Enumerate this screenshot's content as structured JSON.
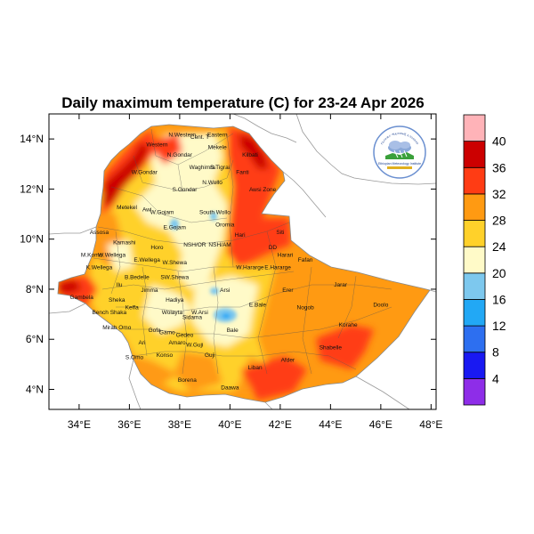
{
  "title": "Daily maximum temperature (C) for 23-24 Apr 2026",
  "colors": {
    "background": "#ffffff",
    "land_outside": "#ffffff",
    "border": "#999999",
    "frame": "#000000"
  },
  "axes": {
    "x_ticks": [
      "34°E",
      "36°E",
      "38°E",
      "40°E",
      "42°E",
      "44°E",
      "46°E",
      "48°E"
    ],
    "y_ticks": [
      "14°N",
      "12°N",
      "10°N",
      "8°N",
      "6°N",
      "4°N"
    ],
    "xlim": [
      32.8,
      48.2
    ],
    "ylim": [
      3.2,
      15.0
    ]
  },
  "colorbar": {
    "bins": [
      {
        "color": "#8e2de8"
      },
      {
        "color": "#1919f2"
      },
      {
        "color": "#2d6ff0"
      },
      {
        "color": "#22a8f5"
      },
      {
        "color": "#7dc8ee"
      },
      {
        "color": "#fffac8"
      },
      {
        "color": "#ffd12a"
      },
      {
        "color": "#ff9a12"
      },
      {
        "color": "#ff3c14"
      },
      {
        "color": "#cc0000"
      },
      {
        "color": "#ffb3b8"
      }
    ],
    "labels": [
      "4",
      "8",
      "12",
      "16",
      "20",
      "24",
      "28",
      "32",
      "36",
      "40"
    ]
  },
  "logo": {
    "top_text": "የኢትዮጵያ ሚቲዎሮሎጂ ኢንስቲትዩት",
    "bottom_text": "Ethiopian Meteorology Institute"
  },
  "regions": [
    {
      "name": "N.Western",
      "lon": 38.1,
      "lat": 14.1
    },
    {
      "name": "Cent. T",
      "lon": 38.8,
      "lat": 14.0
    },
    {
      "name": "Eastern",
      "lon": 39.5,
      "lat": 14.1
    },
    {
      "name": "Western",
      "lon": 37.1,
      "lat": 13.7
    },
    {
      "name": "Mekele",
      "lon": 39.5,
      "lat": 13.6
    },
    {
      "name": "Kilbati",
      "lon": 40.8,
      "lat": 13.3
    },
    {
      "name": "N.Gondar",
      "lon": 38.0,
      "lat": 13.3
    },
    {
      "name": "S.Tigrai",
      "lon": 39.6,
      "lat": 12.8
    },
    {
      "name": "W.Gondar",
      "lon": 36.6,
      "lat": 12.6
    },
    {
      "name": "Waghimra",
      "lon": 38.9,
      "lat": 12.8
    },
    {
      "name": "Fanti",
      "lon": 40.5,
      "lat": 12.6
    },
    {
      "name": "N.Wollo",
      "lon": 39.3,
      "lat": 12.2
    },
    {
      "name": "Awsi Zone",
      "lon": 41.3,
      "lat": 11.9
    },
    {
      "name": "S.Gondar",
      "lon": 38.2,
      "lat": 11.9
    },
    {
      "name": "Metekel",
      "lon": 35.9,
      "lat": 11.2
    },
    {
      "name": "Awi",
      "lon": 36.7,
      "lat": 11.1
    },
    {
      "name": "W.Gojam",
      "lon": 37.3,
      "lat": 11.0
    },
    {
      "name": "South Wollo",
      "lon": 39.4,
      "lat": 11.0
    },
    {
      "name": "Oromia",
      "lon": 39.8,
      "lat": 10.5
    },
    {
      "name": "E.Gojam",
      "lon": 37.8,
      "lat": 10.4
    },
    {
      "name": "Hari",
      "lon": 40.4,
      "lat": 10.1
    },
    {
      "name": "Assosa",
      "lon": 34.8,
      "lat": 10.2
    },
    {
      "name": "Siti",
      "lon": 42.0,
      "lat": 10.2
    },
    {
      "name": "Kamashi",
      "lon": 35.8,
      "lat": 9.8
    },
    {
      "name": "Horo",
      "lon": 37.1,
      "lat": 9.6
    },
    {
      "name": "NSH/OR",
      "lon": 38.6,
      "lat": 9.7
    },
    {
      "name": "NSH/AM",
      "lon": 39.6,
      "lat": 9.7
    },
    {
      "name": "DD",
      "lon": 41.7,
      "lat": 9.6
    },
    {
      "name": "Harari",
      "lon": 42.2,
      "lat": 9.3
    },
    {
      "name": "M.Komo",
      "lon": 34.5,
      "lat": 9.3
    },
    {
      "name": "W.Wellega",
      "lon": 35.3,
      "lat": 9.3
    },
    {
      "name": "E.Wellega",
      "lon": 36.7,
      "lat": 9.1
    },
    {
      "name": "W.Shewa",
      "lon": 37.8,
      "lat": 9.0
    },
    {
      "name": "Fafan",
      "lon": 43.0,
      "lat": 9.1
    },
    {
      "name": "W.Hararge",
      "lon": 40.8,
      "lat": 8.8
    },
    {
      "name": "E.Hararge",
      "lon": 41.9,
      "lat": 8.8
    },
    {
      "name": "K.Wellega",
      "lon": 34.8,
      "lat": 8.8
    },
    {
      "name": "B.Bedelle",
      "lon": 36.3,
      "lat": 8.4
    },
    {
      "name": "SW.Shewa",
      "lon": 37.8,
      "lat": 8.4
    },
    {
      "name": "Jarar",
      "lon": 44.4,
      "lat": 8.1
    },
    {
      "name": "Ilu",
      "lon": 35.6,
      "lat": 8.1
    },
    {
      "name": "Jimma",
      "lon": 36.8,
      "lat": 7.9
    },
    {
      "name": "Arsi",
      "lon": 39.8,
      "lat": 7.9
    },
    {
      "name": "Erer",
      "lon": 42.3,
      "lat": 7.9
    },
    {
      "name": "Gambela",
      "lon": 34.1,
      "lat": 7.6
    },
    {
      "name": "Keffa",
      "lon": 36.1,
      "lat": 7.2
    },
    {
      "name": "Hadiya",
      "lon": 37.8,
      "lat": 7.5
    },
    {
      "name": "Sheka",
      "lon": 35.5,
      "lat": 7.5
    },
    {
      "name": "Bench Shaka",
      "lon": 35.2,
      "lat": 7.0
    },
    {
      "name": "Wolayta",
      "lon": 37.7,
      "lat": 7.0
    },
    {
      "name": "W.Arsi",
      "lon": 38.8,
      "lat": 7.0
    },
    {
      "name": "E.Bale",
      "lon": 41.1,
      "lat": 7.3
    },
    {
      "name": "Nogob",
      "lon": 43.0,
      "lat": 7.2
    },
    {
      "name": "Doolo",
      "lon": 46.0,
      "lat": 7.3
    },
    {
      "name": "Mirab Omo",
      "lon": 35.5,
      "lat": 6.4
    },
    {
      "name": "Sidama",
      "lon": 38.5,
      "lat": 6.8
    },
    {
      "name": "Gofa",
      "lon": 37.0,
      "lat": 6.3
    },
    {
      "name": "Gamo",
      "lon": 37.5,
      "lat": 6.2
    },
    {
      "name": "Gedeo",
      "lon": 38.2,
      "lat": 6.1
    },
    {
      "name": "Bale",
      "lon": 40.1,
      "lat": 6.3
    },
    {
      "name": "Korahe",
      "lon": 44.7,
      "lat": 6.5
    },
    {
      "name": "Amaro",
      "lon": 37.9,
      "lat": 5.8
    },
    {
      "name": "W.Guji",
      "lon": 38.6,
      "lat": 5.7
    },
    {
      "name": "Ari",
      "lon": 36.5,
      "lat": 5.8
    },
    {
      "name": "S.Omo",
      "lon": 36.2,
      "lat": 5.2
    },
    {
      "name": "Guji",
      "lon": 39.2,
      "lat": 5.3
    },
    {
      "name": "Konso",
      "lon": 37.4,
      "lat": 5.3
    },
    {
      "name": "Afder",
      "lon": 42.3,
      "lat": 5.1
    },
    {
      "name": "Shabelle",
      "lon": 44.0,
      "lat": 5.6
    },
    {
      "name": "Liban",
      "lon": 41.0,
      "lat": 4.8
    },
    {
      "name": "Borena",
      "lon": 38.3,
      "lat": 4.3
    },
    {
      "name": "Daawa",
      "lon": 40.0,
      "lat": 4.0
    }
  ]
}
